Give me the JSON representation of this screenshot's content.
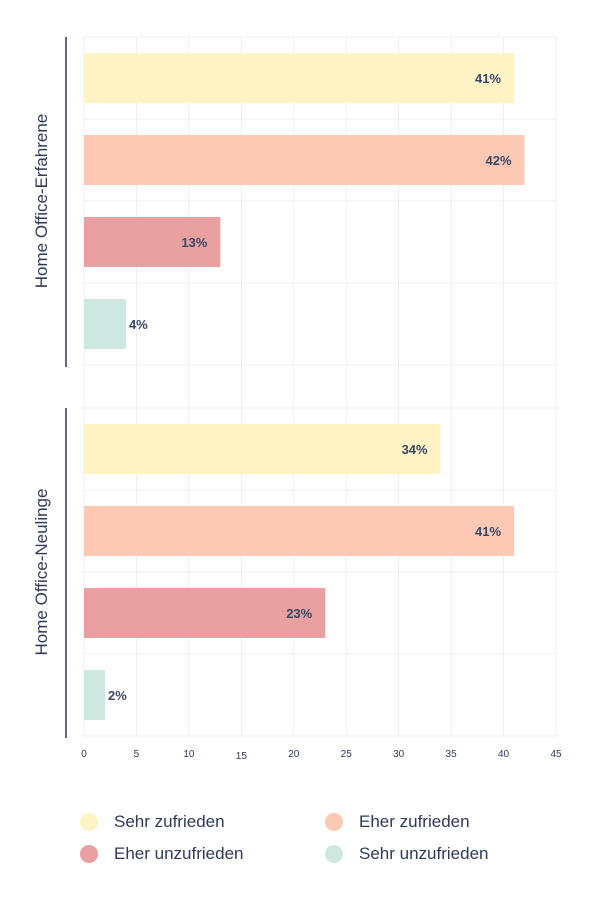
{
  "chart_data": {
    "type": "bar",
    "orientation": "horizontal",
    "groups": [
      {
        "name": "Home Office-Erfahrene",
        "values": [
          41,
          42,
          13,
          4
        ],
        "labels": [
          "41%",
          "42%",
          "13%",
          "4%"
        ]
      },
      {
        "name": "Home Office-Neulinge",
        "values": [
          34,
          41,
          23,
          2
        ],
        "labels": [
          "34%",
          "41%",
          "23%",
          "2%"
        ]
      }
    ],
    "series": [
      {
        "name": "Sehr zufrieden",
        "color": "#fdf3c4"
      },
      {
        "name": "Eher zufrieden",
        "color": "#fdc9b5"
      },
      {
        "name": "Eher unzufrieden",
        "color": "#e8a0a0"
      },
      {
        "name": "Sehr unzufrieden",
        "color": "#cde8e1"
      }
    ],
    "xlim": [
      0,
      45
    ],
    "xticks": [
      0,
      5,
      10,
      15,
      20,
      25,
      30,
      35,
      40,
      45
    ],
    "grid": true,
    "legend_position": "bottom"
  }
}
